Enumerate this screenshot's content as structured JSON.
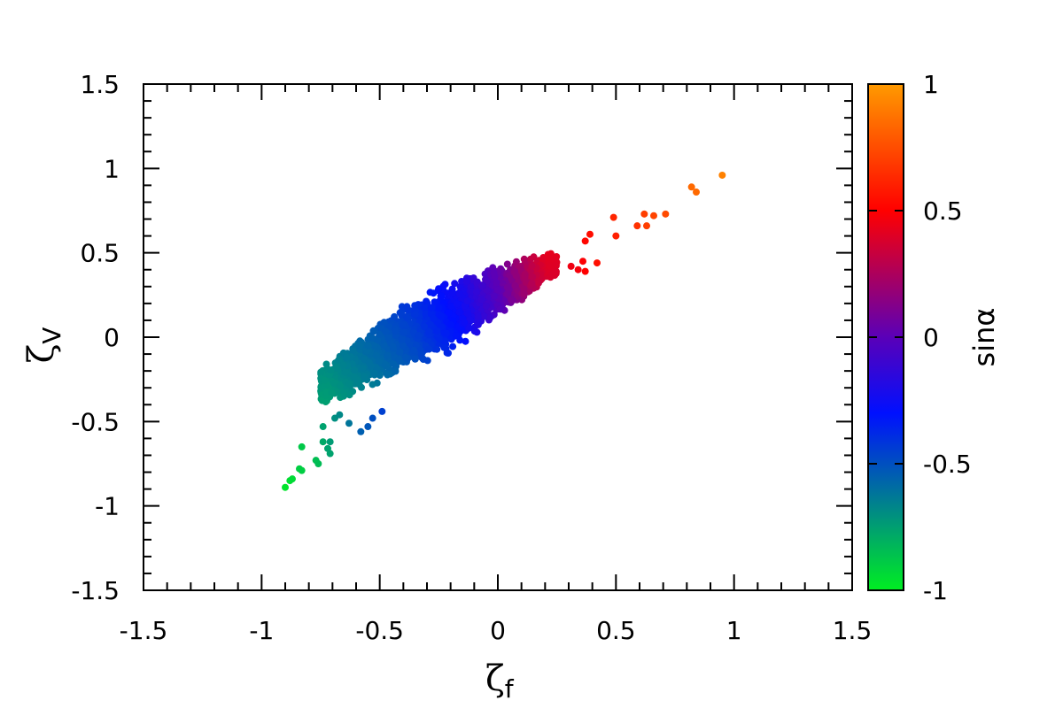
{
  "chart_data": {
    "type": "scatter",
    "title": "",
    "xlabel": "ζ",
    "xlabel_sub": "f",
    "ylabel": "ζ",
    "ylabel_sub": "V",
    "xlim": [
      -1.5,
      1.5
    ],
    "ylim": [
      -1.5,
      1.5
    ],
    "xticks": [
      -1.5,
      -1,
      -0.5,
      0,
      0.5,
      1,
      1.5
    ],
    "xtick_labels": [
      "-1.5",
      "-1",
      "-0.5",
      "0",
      "0.5",
      "1",
      "1.5"
    ],
    "yticks": [
      -1.5,
      -1,
      -0.5,
      0,
      0.5,
      1,
      1.5
    ],
    "ytick_labels": [
      "-1.5",
      "-1",
      "-0.5",
      "0",
      "0.5",
      "1",
      "1.5"
    ],
    "grid": false,
    "colorbar": {
      "label": "sinα",
      "range": [
        -1,
        1
      ],
      "ticks": [
        -1,
        -0.5,
        0,
        0.5,
        1
      ],
      "tick_labels": [
        "-1",
        "-0.5",
        "0",
        "0.5",
        "1"
      ],
      "colormap": [
        {
          "value": -1.0,
          "color": "#00ee22"
        },
        {
          "value": -0.6,
          "color": "#006fa0"
        },
        {
          "value": -0.3,
          "color": "#0010ff"
        },
        {
          "value": 0.0,
          "color": "#5a00b8"
        },
        {
          "value": 0.5,
          "color": "#ff0000"
        },
        {
          "value": 1.0,
          "color": "#ff9a00"
        }
      ]
    },
    "series": [
      {
        "points": [
          {
            "x": -0.9,
            "y": -0.89,
            "c": -0.97
          },
          {
            "x": -0.88,
            "y": -0.85,
            "c": -0.95
          },
          {
            "x": -0.87,
            "y": -0.84,
            "c": -0.94
          },
          {
            "x": -0.84,
            "y": -0.78,
            "c": -0.9
          },
          {
            "x": -0.83,
            "y": -0.65,
            "c": -0.88
          },
          {
            "x": -0.83,
            "y": -0.79,
            "c": -0.9
          },
          {
            "x": -0.77,
            "y": -0.73,
            "c": -0.85
          },
          {
            "x": -0.76,
            "y": -0.75,
            "c": -0.84
          },
          {
            "x": -0.74,
            "y": -0.62,
            "c": -0.78
          },
          {
            "x": -0.74,
            "y": -0.53,
            "c": -0.76
          },
          {
            "x": -0.72,
            "y": -0.66,
            "c": -0.76
          },
          {
            "x": -0.71,
            "y": -0.62,
            "c": -0.74
          },
          {
            "x": -0.71,
            "y": -0.69,
            "c": -0.76
          },
          {
            "x": -0.69,
            "y": -0.48,
            "c": -0.7
          },
          {
            "x": -0.67,
            "y": -0.46,
            "c": -0.68
          },
          {
            "x": -0.63,
            "y": -0.51,
            "c": -0.62
          },
          {
            "x": -0.58,
            "y": -0.56,
            "c": -0.55
          },
          {
            "x": -0.55,
            "y": -0.53,
            "c": -0.52
          },
          {
            "x": -0.53,
            "y": -0.48,
            "c": -0.5
          },
          {
            "x": -0.49,
            "y": -0.44,
            "c": -0.45
          },
          {
            "x": 0.31,
            "y": 0.42,
            "c": 0.45
          },
          {
            "x": 0.34,
            "y": 0.4,
            "c": 0.47
          },
          {
            "x": 0.36,
            "y": 0.45,
            "c": 0.49
          },
          {
            "x": 0.37,
            "y": 0.39,
            "c": 0.5
          },
          {
            "x": 0.37,
            "y": 0.57,
            "c": 0.52
          },
          {
            "x": 0.39,
            "y": 0.61,
            "c": 0.54
          },
          {
            "x": 0.42,
            "y": 0.44,
            "c": 0.55
          },
          {
            "x": 0.49,
            "y": 0.71,
            "c": 0.62
          },
          {
            "x": 0.5,
            "y": 0.6,
            "c": 0.6
          },
          {
            "x": 0.59,
            "y": 0.66,
            "c": 0.66
          },
          {
            "x": 0.62,
            "y": 0.73,
            "c": 0.7
          },
          {
            "x": 0.63,
            "y": 0.66,
            "c": 0.7
          },
          {
            "x": 0.66,
            "y": 0.72,
            "c": 0.72
          },
          {
            "x": 0.71,
            "y": 0.73,
            "c": 0.74
          },
          {
            "x": 0.82,
            "y": 0.89,
            "c": 0.84
          },
          {
            "x": 0.84,
            "y": 0.86,
            "c": 0.84
          },
          {
            "x": 0.95,
            "y": 0.96,
            "c": 0.92
          }
        ],
        "cloud": {
          "description_free": true,
          "x_range": [
            -0.75,
            0.25
          ],
          "center_line": [
            [
              -0.72,
              -0.28
            ],
            [
              -0.45,
              -0.05
            ],
            [
              -0.2,
              0.12
            ],
            [
              0.0,
              0.28
            ],
            [
              0.22,
              0.42
            ]
          ],
          "half_width_y": [
            0.13,
            0.2,
            0.21,
            0.16,
            0.08
          ],
          "color_at_x": [
            [
              -0.72,
              -0.72
            ],
            [
              -0.55,
              -0.6
            ],
            [
              -0.35,
              -0.45
            ],
            [
              -0.15,
              -0.25
            ],
            [
              0.0,
              0.0
            ],
            [
              0.2,
              0.4
            ]
          ]
        }
      }
    ]
  }
}
